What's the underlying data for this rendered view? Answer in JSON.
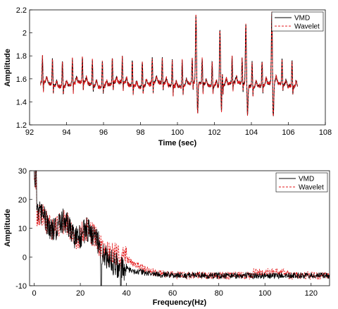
{
  "chart_data": [
    {
      "type": "line",
      "title": "",
      "xlabel": "Time (sec)",
      "ylabel": "Amplitude",
      "xlim": [
        92,
        108
      ],
      "ylim": [
        1.2,
        2.2
      ],
      "xticks": [
        "92",
        "94",
        "96",
        "98",
        "100",
        "102",
        "104",
        "106",
        "108"
      ],
      "yticks": [
        "1.2",
        "1.4",
        "1.6",
        "1.8",
        "2",
        "2.2"
      ],
      "grid": false,
      "legend_position": "top-right",
      "signal_range": [
        92.6,
        106.5
      ],
      "spike_times": [
        101.0,
        102.3,
        103.7,
        105.1
      ],
      "series": [
        {
          "name": "VMD",
          "color": "#000000",
          "style": "solid"
        },
        {
          "name": "Wavelet",
          "color": "#e31a1c",
          "style": "dashed"
        }
      ]
    },
    {
      "type": "line",
      "title": "",
      "xlabel": "Frequency(Hz)",
      "ylabel": "Amplitude",
      "xlim": [
        -2,
        128
      ],
      "ylim": [
        -10,
        30
      ],
      "xticks": [
        "0",
        "20",
        "40",
        "60",
        "80",
        "100",
        "120"
      ],
      "yticks": [
        "-10",
        "0",
        "10",
        "20",
        "30"
      ],
      "grid": false,
      "legend_position": "top-right",
      "series": [
        {
          "name": "VMD",
          "color": "#000000",
          "style": "solid"
        },
        {
          "name": "Wavelet",
          "color": "#e31a1c",
          "style": "dashed"
        }
      ]
    }
  ]
}
